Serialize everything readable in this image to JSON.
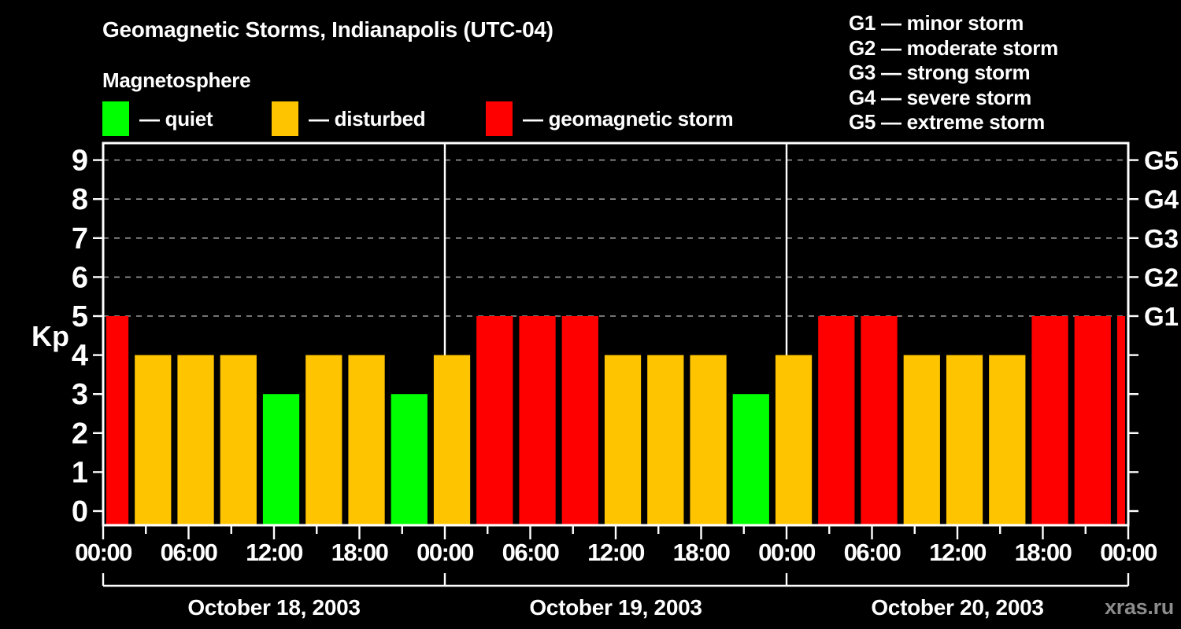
{
  "title": "Geomagnetic Storms, Indianapolis (UTC-04)",
  "subtitle": "Magnetosphere",
  "watermark": "xras.ru",
  "colors": {
    "quiet": "#00ff00",
    "disturbed": "#ffc400",
    "storm": "#ff0000",
    "axis": "#ffffff",
    "gridline": "#9a9a9a",
    "background": "#000000",
    "watermark": "#8c8c8c"
  },
  "legend": {
    "items": [
      {
        "state": "quiet",
        "color": "#00ff00",
        "label": "— quiet"
      },
      {
        "state": "disturbed",
        "color": "#ffc400",
        "label": "— disturbed"
      },
      {
        "state": "storm",
        "color": "#ff0000",
        "label": "— geomagnetic storm"
      }
    ]
  },
  "storm_scale_legend": [
    {
      "code": "G1",
      "name": "minor storm",
      "label": "G1 — minor storm"
    },
    {
      "code": "G2",
      "name": "moderate storm",
      "label": "G2 — moderate storm"
    },
    {
      "code": "G3",
      "name": "strong storm",
      "label": "G3 — strong storm"
    },
    {
      "code": "G4",
      "name": "severe storm",
      "label": "G4 — severe storm"
    },
    {
      "code": "G5",
      "name": "extreme storm",
      "label": "G5 — extreme storm"
    }
  ],
  "chart_data": {
    "type": "bar",
    "title": "Geomagnetic Storms, Indianapolis (UTC-04)",
    "ylabel": "Kp",
    "ylim": [
      -0.4,
      9.4
    ],
    "x_range_hours": [
      0,
      72
    ],
    "grid": "dashed horizontal at Kp 5-9",
    "legend_position": "top",
    "y_ticks": [
      {
        "value": 0,
        "label": "0"
      },
      {
        "value": 1,
        "label": "1"
      },
      {
        "value": 2,
        "label": "2"
      },
      {
        "value": 3,
        "label": "3"
      },
      {
        "value": 4,
        "label": "4"
      },
      {
        "value": 5,
        "label": "5"
      },
      {
        "value": 6,
        "label": "6"
      },
      {
        "value": 7,
        "label": "7"
      },
      {
        "value": 8,
        "label": "8"
      },
      {
        "value": 9,
        "label": "9"
      }
    ],
    "gridlines_kp": [
      5,
      6,
      7,
      8,
      9
    ],
    "right_axis": [
      {
        "kp": 5,
        "label": "G1"
      },
      {
        "kp": 6,
        "label": "G2"
      },
      {
        "kp": 7,
        "label": "G3"
      },
      {
        "kp": 8,
        "label": "G4"
      },
      {
        "kp": 9,
        "label": "G5"
      }
    ],
    "x_ticks": [
      {
        "hour": 0,
        "label": "00:00"
      },
      {
        "hour": 6,
        "label": "06:00"
      },
      {
        "hour": 12,
        "label": "12:00"
      },
      {
        "hour": 18,
        "label": "18:00"
      },
      {
        "hour": 24,
        "label": "00:00"
      },
      {
        "hour": 30,
        "label": "06:00"
      },
      {
        "hour": 36,
        "label": "12:00"
      },
      {
        "hour": 42,
        "label": "18:00"
      },
      {
        "hour": 48,
        "label": "00:00"
      },
      {
        "hour": 54,
        "label": "06:00"
      },
      {
        "hour": 60,
        "label": "12:00"
      },
      {
        "hour": 66,
        "label": "18:00"
      },
      {
        "hour": 72,
        "label": "00:00"
      }
    ],
    "x_minor_tick_hours": [
      3,
      9,
      15,
      21,
      27,
      33,
      39,
      45,
      51,
      57,
      63,
      69
    ],
    "day_boundaries_hours": [
      24,
      48
    ],
    "days": [
      {
        "label": "October 18, 2003",
        "start_hour": 0,
        "end_hour": 24
      },
      {
        "label": "October 19, 2003",
        "start_hour": 24,
        "end_hour": 48
      },
      {
        "label": "October 20, 2003",
        "start_hour": 48,
        "end_hour": 72
      }
    ],
    "bars": [
      {
        "h0": 0,
        "h1": 2,
        "kp": 5,
        "state": "storm"
      },
      {
        "h0": 2,
        "h1": 5,
        "kp": 4,
        "state": "disturbed"
      },
      {
        "h0": 5,
        "h1": 8,
        "kp": 4,
        "state": "disturbed"
      },
      {
        "h0": 8,
        "h1": 11,
        "kp": 4,
        "state": "disturbed"
      },
      {
        "h0": 11,
        "h1": 14,
        "kp": 3,
        "state": "quiet"
      },
      {
        "h0": 14,
        "h1": 17,
        "kp": 4,
        "state": "disturbed"
      },
      {
        "h0": 17,
        "h1": 20,
        "kp": 4,
        "state": "disturbed"
      },
      {
        "h0": 20,
        "h1": 23,
        "kp": 3,
        "state": "quiet"
      },
      {
        "h0": 23,
        "h1": 26,
        "kp": 4,
        "state": "disturbed"
      },
      {
        "h0": 26,
        "h1": 29,
        "kp": 5,
        "state": "storm"
      },
      {
        "h0": 29,
        "h1": 32,
        "kp": 5,
        "state": "storm"
      },
      {
        "h0": 32,
        "h1": 35,
        "kp": 5,
        "state": "storm"
      },
      {
        "h0": 35,
        "h1": 38,
        "kp": 4,
        "state": "disturbed"
      },
      {
        "h0": 38,
        "h1": 41,
        "kp": 4,
        "state": "disturbed"
      },
      {
        "h0": 41,
        "h1": 44,
        "kp": 4,
        "state": "disturbed"
      },
      {
        "h0": 44,
        "h1": 47,
        "kp": 3,
        "state": "quiet"
      },
      {
        "h0": 47,
        "h1": 50,
        "kp": 4,
        "state": "disturbed"
      },
      {
        "h0": 50,
        "h1": 53,
        "kp": 5,
        "state": "storm"
      },
      {
        "h0": 53,
        "h1": 56,
        "kp": 5,
        "state": "storm"
      },
      {
        "h0": 56,
        "h1": 59,
        "kp": 4,
        "state": "disturbed"
      },
      {
        "h0": 59,
        "h1": 62,
        "kp": 4,
        "state": "disturbed"
      },
      {
        "h0": 62,
        "h1": 65,
        "kp": 4,
        "state": "disturbed"
      },
      {
        "h0": 65,
        "h1": 68,
        "kp": 5,
        "state": "storm"
      },
      {
        "h0": 68,
        "h1": 71,
        "kp": 5,
        "state": "storm"
      },
      {
        "h0": 71,
        "h1": 72,
        "kp": 5,
        "state": "storm"
      }
    ]
  }
}
